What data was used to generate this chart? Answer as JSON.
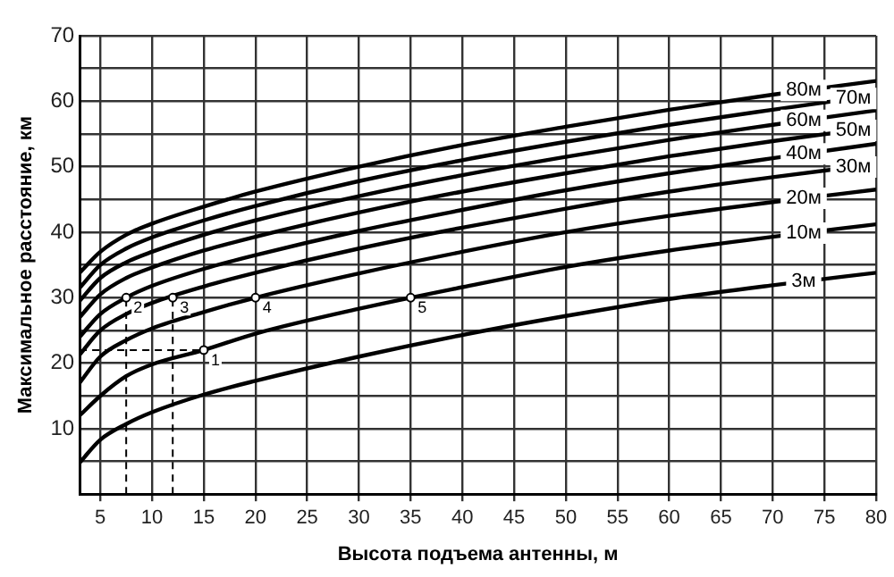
{
  "chart_data": {
    "type": "line",
    "xlabel": "Высота подъема антенны, м",
    "ylabel": "Максимальное расстояние, км",
    "xlim": [
      3,
      80
    ],
    "xticks": [
      5,
      10,
      15,
      20,
      25,
      30,
      35,
      40,
      45,
      50,
      55,
      60,
      65,
      70,
      75,
      80
    ],
    "ylim": [
      0,
      70
    ],
    "yticks": [
      {
        "value": 5,
        "label": null
      },
      10,
      {
        "value": 15,
        "label": null
      },
      20,
      {
        "value": 25,
        "label": null
      },
      30,
      {
        "value": 35,
        "label": null
      },
      40,
      {
        "value": 45,
        "label": null
      },
      50,
      {
        "value": 55,
        "label": null
      },
      60,
      {
        "value": 65,
        "label": null
      },
      70
    ],
    "grid": true,
    "legend": false,
    "series": [
      {
        "name": "3м",
        "color": "#000000",
        "x": [
          3,
          5,
          7.5,
          10,
          15,
          20,
          30,
          40,
          50,
          60,
          70,
          80
        ],
        "values": [
          4.8,
          8.3,
          10.7,
          12.5,
          15.2,
          17.3,
          21,
          24.3,
          27.2,
          29.8,
          31.9,
          33.8
        ]
      },
      {
        "name": "10м",
        "color": "#000000",
        "x": [
          3,
          5,
          7.5,
          10,
          15,
          20,
          30,
          40,
          50,
          60,
          70,
          80
        ],
        "values": [
          12,
          15,
          18,
          19.8,
          22,
          24.5,
          28.3,
          31.6,
          34.7,
          37.2,
          39.3,
          41.2
        ]
      },
      {
        "name": "20м",
        "color": "#000000",
        "x": [
          3,
          5,
          7.5,
          10,
          15,
          20,
          30,
          40,
          50,
          60,
          70,
          80
        ],
        "values": [
          17,
          21,
          23.5,
          25.3,
          27.8,
          30,
          33.7,
          37,
          40,
          42.5,
          44.6,
          46.5
        ]
      },
      {
        "name": "30м",
        "color": "#000000",
        "x": [
          3,
          5,
          7.5,
          10,
          15,
          20,
          30,
          40,
          50,
          60,
          70,
          80
        ],
        "values": [
          21.3,
          25,
          27.5,
          29.2,
          31.7,
          33.8,
          37.5,
          40.7,
          43.6,
          46.2,
          48.4,
          50.4
        ]
      },
      {
        "name": "40м",
        "color": "#000000",
        "x": [
          3,
          5,
          7.5,
          10,
          15,
          20,
          30,
          40,
          50,
          60,
          70,
          80
        ],
        "values": [
          24,
          27.5,
          30,
          31.8,
          34.4,
          36.5,
          40.2,
          43.4,
          46.4,
          49,
          51.3,
          53.5
        ]
      },
      {
        "name": "50м",
        "color": "#000000",
        "x": [
          3,
          5,
          7.5,
          10,
          15,
          20,
          30,
          40,
          50,
          60,
          70,
          80
        ],
        "values": [
          27,
          30.5,
          33,
          34.6,
          37.2,
          39.3,
          43,
          46.2,
          49,
          51.6,
          53.9,
          56
        ]
      },
      {
        "name": "60м",
        "color": "#000000",
        "x": [
          3,
          5,
          7.5,
          10,
          15,
          20,
          30,
          40,
          50,
          60,
          70,
          80
        ],
        "values": [
          29.5,
          33,
          35.4,
          37,
          39.6,
          41.8,
          45.5,
          48.7,
          51.5,
          54.1,
          56.4,
          58.6
        ]
      },
      {
        "name": "70м",
        "color": "#000000",
        "x": [
          3,
          5,
          7.5,
          10,
          15,
          20,
          30,
          40,
          50,
          60,
          70,
          80
        ],
        "values": [
          31.5,
          35,
          37.5,
          39.2,
          41.8,
          44,
          47.8,
          51,
          53.8,
          56.4,
          58.7,
          60.9
        ]
      },
      {
        "name": "80м",
        "color": "#000000",
        "x": [
          3,
          5,
          7.5,
          10,
          15,
          20,
          30,
          40,
          50,
          60,
          70,
          80
        ],
        "values": [
          33.8,
          37,
          39.6,
          41.3,
          43.9,
          46.2,
          50,
          53.3,
          56.1,
          58.7,
          61,
          63.1
        ]
      },
      {
        "type": "line",
        "line_style": "dashed",
        "color": "#000000",
        "x": [
          3,
          15
        ],
        "values": [
          22,
          22
        ]
      },
      {
        "type": "line",
        "line_style": "dashed",
        "color": "#000000",
        "x": [
          7.5,
          7.5
        ],
        "values": [
          0,
          30
        ]
      },
      {
        "type": "line",
        "line_style": "dashed",
        "color": "#000000",
        "x": [
          12,
          12
        ],
        "values": [
          0,
          30
        ]
      }
    ],
    "annotations": [
      {
        "text": "1",
        "x": 15,
        "y": 22
      },
      {
        "text": "2",
        "x": 7.5,
        "y": 30
      },
      {
        "text": "3",
        "x": 12,
        "y": 30
      },
      {
        "text": "4",
        "x": 20,
        "y": 30
      },
      {
        "text": "5",
        "x": 35,
        "y": 30
      }
    ]
  }
}
